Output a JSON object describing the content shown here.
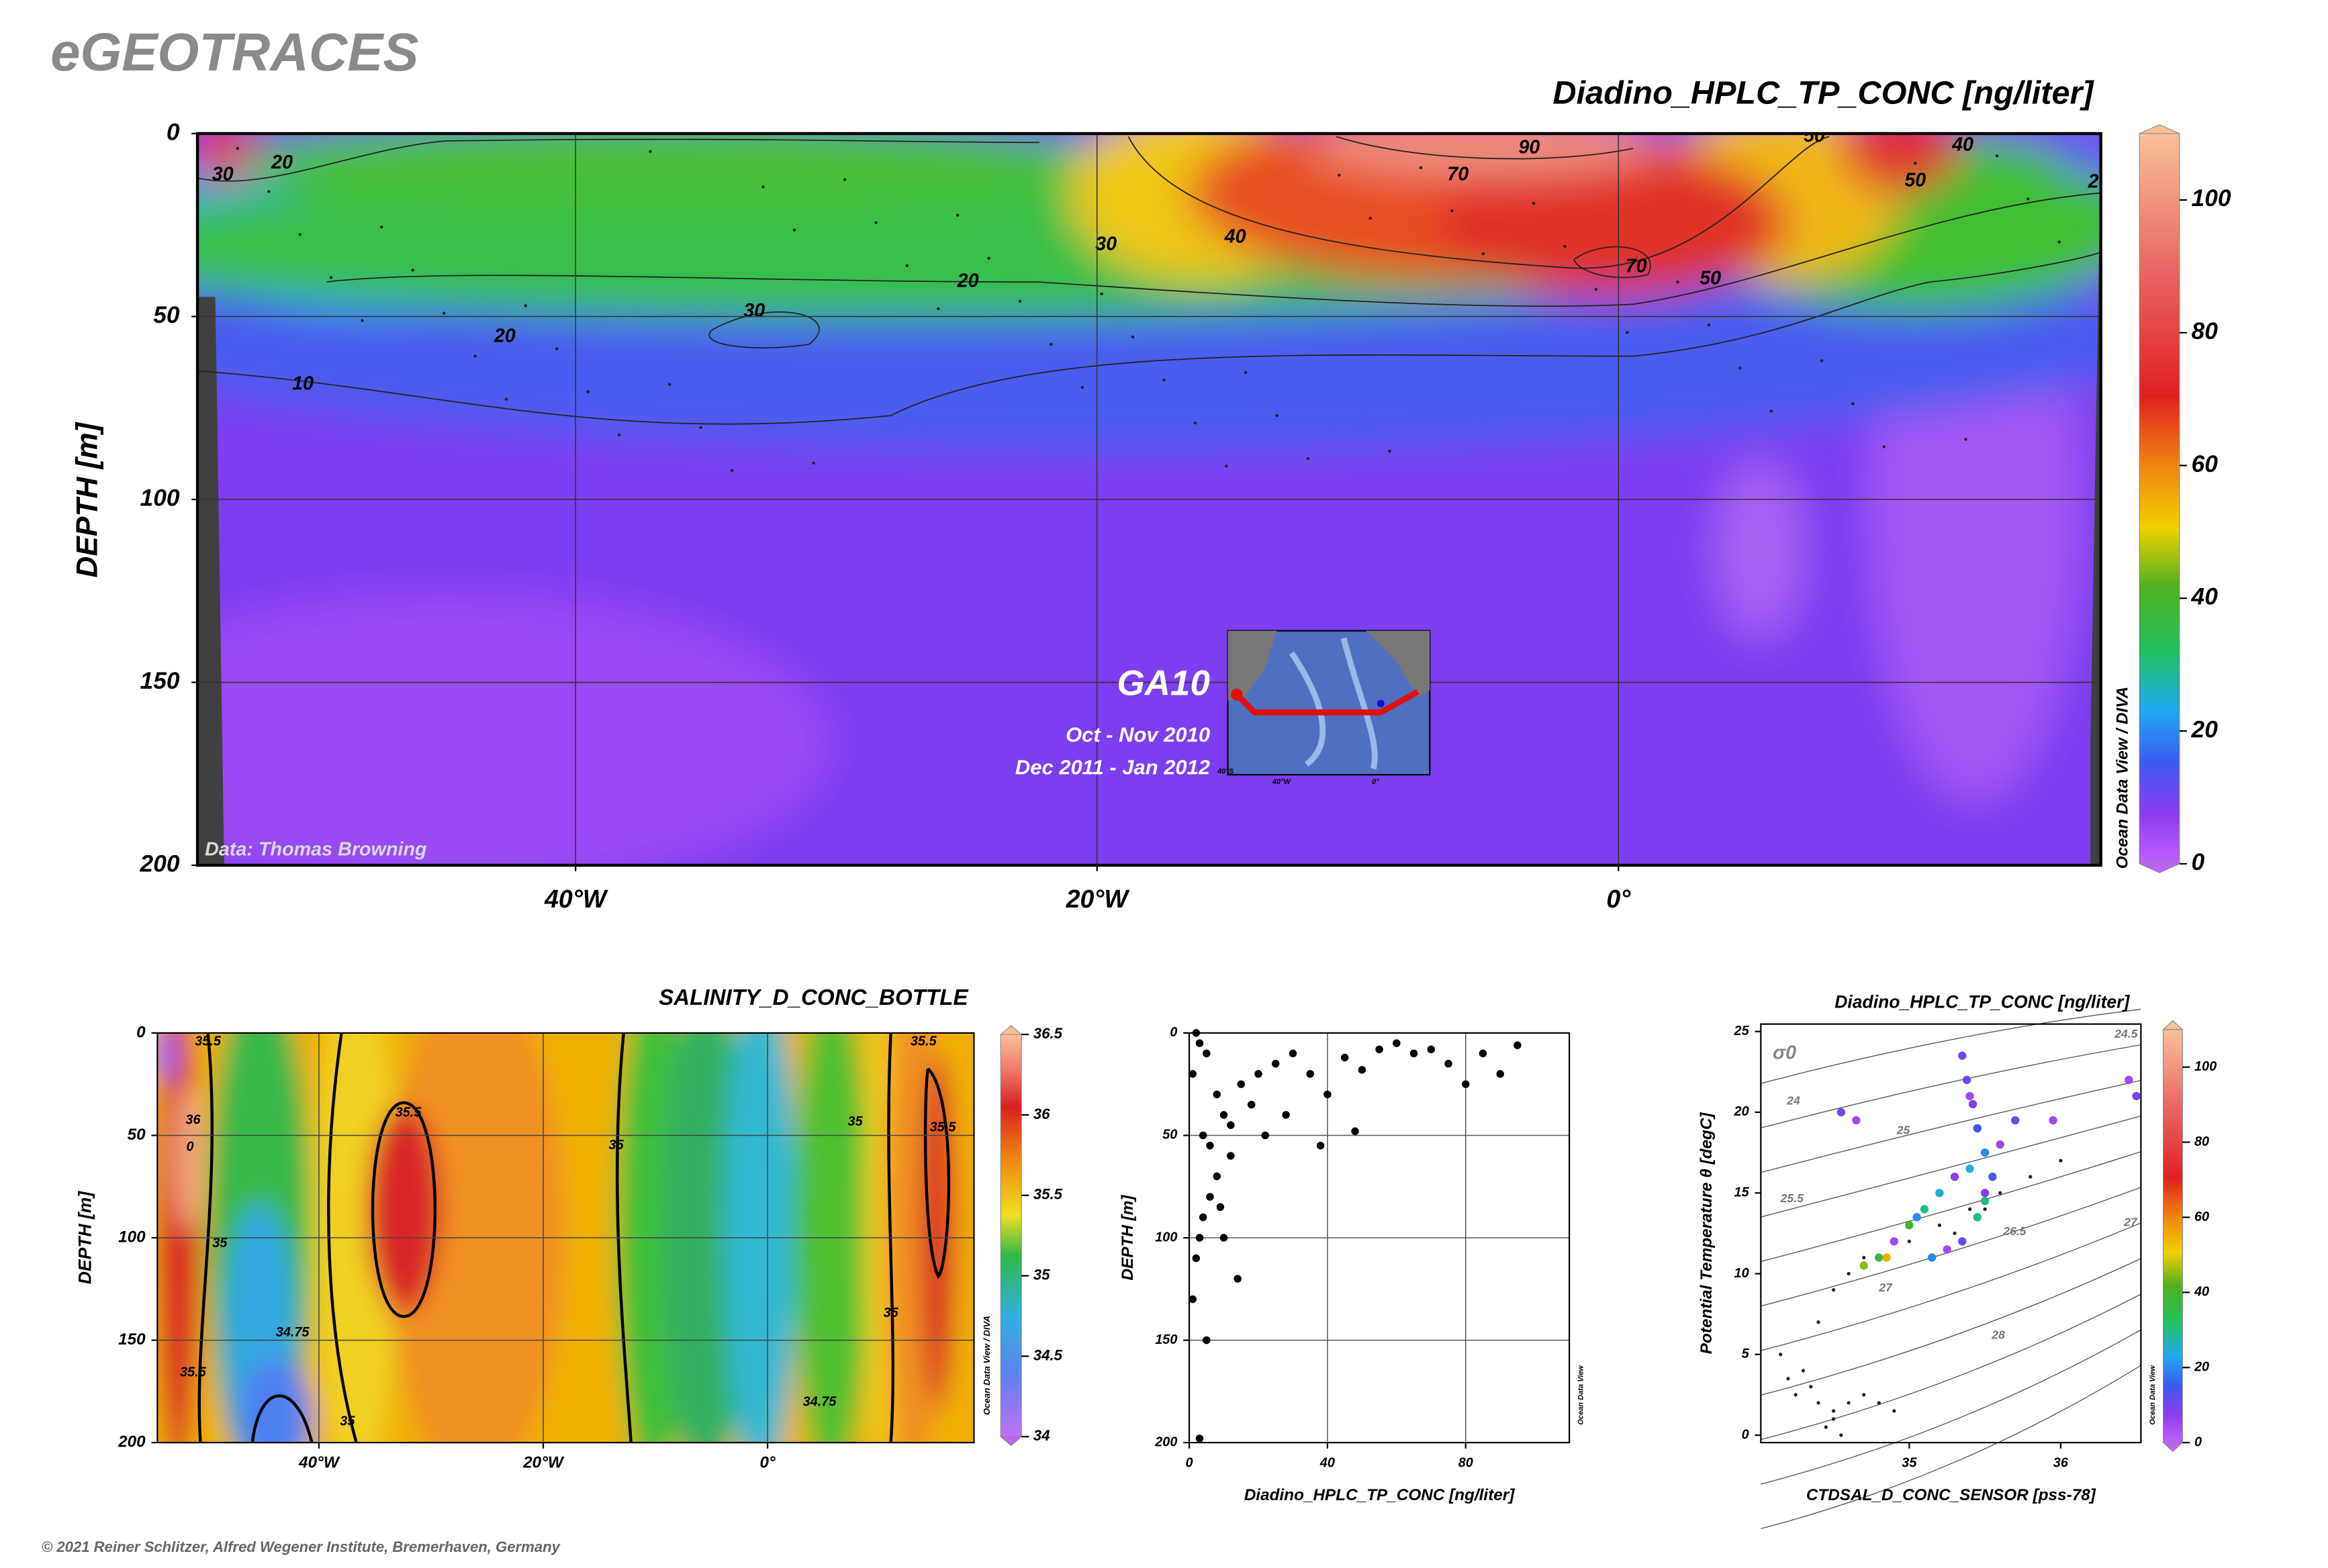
{
  "brand": "eGEOTRACES",
  "copyright": "© 2021 Reiner Schlitzer, Alfred Wegener Institute, Bremerhaven, Germany",
  "chart_data": [
    {
      "type": "section",
      "title": "Diadino_HPLC_TP_CONC [ng/liter]",
      "ylabel": "DEPTH [m]",
      "xlim": [
        -54.5,
        18.5
      ],
      "xticks": [
        {
          "value": -40,
          "label": "40°W"
        },
        {
          "value": -20,
          "label": "20°W"
        },
        {
          "value": 0,
          "label": "0°"
        }
      ],
      "ylim": [
        200,
        0
      ],
      "yticks": [
        0,
        50,
        100,
        150,
        200
      ],
      "grid": true,
      "colorbar": {
        "lim": [
          0,
          110
        ],
        "ticks": [
          0,
          20,
          40,
          60,
          80,
          100
        ]
      },
      "contour_labels": [
        "30",
        "20",
        "20",
        "30",
        "10",
        "30",
        "20",
        "40",
        "50",
        "70",
        "90",
        "70",
        "50",
        "50",
        "40",
        "2"
      ],
      "annotations": [
        "Data: Thomas Browning",
        "Ocean Data View / DIVA"
      ],
      "inset": {
        "label": "GA10",
        "dates": [
          "Oct - Nov 2010",
          "Dec 2011 - Jan 2012"
        ],
        "axis_labels": [
          "40°S",
          "40°W",
          "0°"
        ]
      }
    },
    {
      "type": "section",
      "title": "SALINITY_D_CONC_BOTTLE",
      "ylabel": "DEPTH [m]",
      "xlim": [
        -54.4,
        18.4
      ],
      "xticks": [
        {
          "value": -40,
          "label": "40°W"
        },
        {
          "value": -20,
          "label": "20°W"
        },
        {
          "value": 0,
          "label": "0°"
        }
      ],
      "ylim": [
        200,
        0
      ],
      "yticks": [
        0,
        50,
        100,
        150,
        200
      ],
      "grid": true,
      "colorbar": {
        "lim": [
          34,
          36.5
        ],
        "ticks": [
          34,
          34.5,
          35,
          35.5,
          36,
          36.5
        ]
      },
      "contour_labels": [
        "35.5",
        "36",
        "0",
        "35.5",
        "35",
        "35",
        "34.75",
        "35",
        "35.5",
        "35.5",
        "35",
        "35",
        "34.75",
        "35.5"
      ],
      "annotations": [
        "Ocean Data View / DIVA"
      ]
    },
    {
      "type": "scatter",
      "xlabel": "Diadino_HPLC_TP_CONC [ng/liter]",
      "ylabel": "DEPTH [m]",
      "xlim": [
        0,
        110
      ],
      "xticks": [
        0,
        40,
        80
      ],
      "ylim": [
        200,
        0
      ],
      "yticks": [
        0,
        50,
        100,
        150,
        200
      ],
      "grid": true,
      "x": [
        2,
        3,
        5,
        1,
        8,
        10,
        12,
        4,
        6,
        15,
        20,
        25,
        18,
        30,
        35,
        40,
        28,
        22,
        45,
        50,
        55,
        60,
        70,
        75,
        85,
        95,
        90,
        80,
        65,
        48,
        38,
        12,
        8,
        6,
        4,
        3,
        2,
        1,
        5,
        10,
        14,
        9,
        3
      ],
      "y": [
        0,
        5,
        10,
        20,
        30,
        40,
        45,
        50,
        55,
        25,
        20,
        15,
        35,
        10,
        20,
        30,
        40,
        50,
        12,
        18,
        8,
        5,
        8,
        15,
        10,
        6,
        20,
        25,
        10,
        48,
        55,
        60,
        70,
        80,
        90,
        100,
        110,
        130,
        150,
        100,
        120,
        85,
        198
      ],
      "color": "#000000",
      "annotations": [
        "Ocean Data View"
      ]
    },
    {
      "type": "ts_scatter",
      "title": "Diadino_HPLC_TP_CONC [ng/liter]",
      "xlabel": "CTDSAL_D_CONC_SENSOR [pss-78]",
      "ylabel": "Potential Temperature θ [degC]",
      "xlim": [
        34.02,
        36.53
      ],
      "xticks": [
        35,
        36
      ],
      "ylim": [
        -0.46,
        25.46
      ],
      "yticks": [
        0,
        5,
        10,
        15,
        20,
        25
      ],
      "grid": false,
      "x": [
        35.35,
        35.4,
        35.45,
        35.5,
        35.3,
        35.2,
        35.1,
        35.0,
        34.9,
        34.8,
        34.7,
        35.6,
        35.7,
        35.5,
        35.45,
        35.35,
        35.25,
        35.15,
        34.55,
        34.65,
        35.95,
        36.45,
        36.5,
        35.4,
        35.5,
        35.55,
        35.42,
        35.05,
        34.85,
        35.38
      ],
      "y": [
        23.5,
        21,
        19,
        17.5,
        16,
        15,
        14,
        13,
        12,
        11,
        10.5,
        18,
        19.5,
        15,
        13.5,
        12,
        11.5,
        11,
        20,
        19.5,
        19.5,
        22,
        21,
        16.5,
        14.5,
        16,
        20.5,
        13.5,
        11,
        22
      ],
      "c": [
        10,
        5,
        15,
        20,
        8,
        25,
        30,
        40,
        5,
        35,
        45,
        5,
        10,
        8,
        30,
        12,
        5,
        20,
        10,
        5,
        5,
        5,
        10,
        25,
        30,
        15,
        8,
        20,
        55,
        10
      ],
      "background": {
        "color": "#202020",
        "x": [
          34.3,
          34.2,
          34.15,
          34.25,
          34.4,
          34.5,
          34.6,
          34.7,
          34.8,
          34.9,
          34.55,
          34.5,
          34.45,
          34.35,
          34.4,
          34.5,
          34.6,
          34.7,
          35.0,
          35.2,
          35.4,
          35.6,
          35.8,
          36.0,
          35.3,
          35.5
        ],
        "y": [
          4,
          3.5,
          5,
          2.5,
          2,
          1.5,
          2,
          2.5,
          2,
          1.5,
          0,
          1,
          0.5,
          3,
          7,
          9,
          10,
          11,
          12,
          13,
          14,
          15,
          16,
          17,
          12.5,
          14
        ]
      },
      "colorbar": {
        "lim": [
          0,
          110
        ],
        "ticks": [
          0,
          20,
          40,
          60,
          80,
          100
        ]
      },
      "density_symbol": "σ0",
      "isopycnal_labels": [
        "24",
        "25",
        "25.5",
        "26.5",
        "27",
        "27",
        "28",
        "24.5"
      ],
      "annotations": [
        "Ocean Data View"
      ]
    }
  ]
}
